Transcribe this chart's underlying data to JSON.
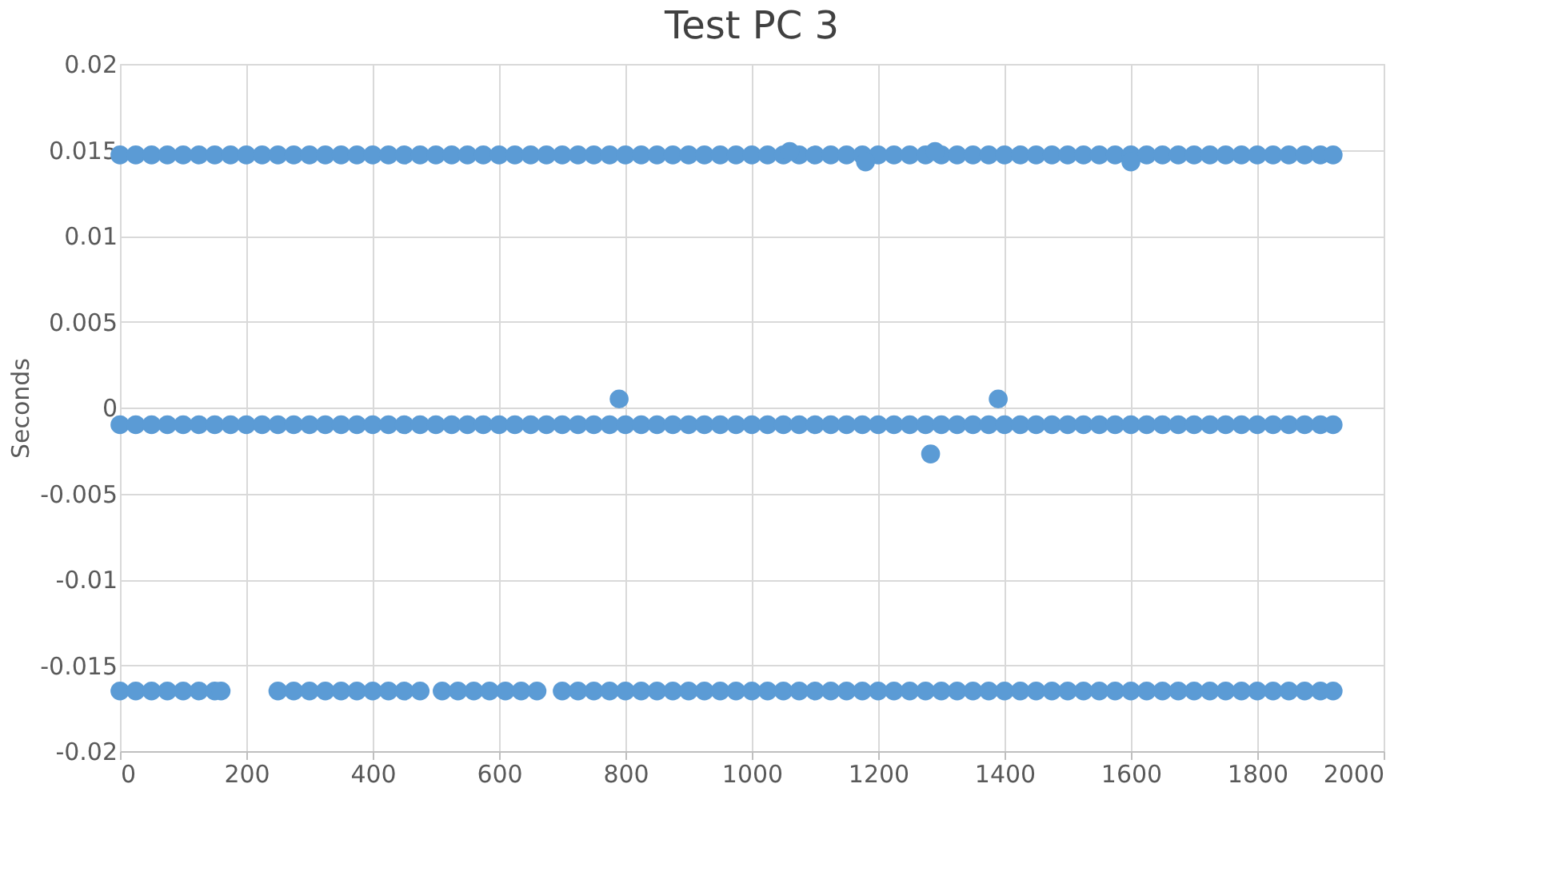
{
  "chart_data": {
    "type": "scatter",
    "title": "Test PC 3",
    "ylabel": "Seconds",
    "xlim": [
      0,
      2000
    ],
    "xticks": [
      0,
      200,
      400,
      600,
      800,
      1000,
      1200,
      1400,
      1600,
      1800,
      2000
    ],
    "ylim": [
      -0.02,
      0.02
    ],
    "yticks": [
      -0.02,
      -0.015,
      -0.01,
      -0.005,
      0,
      0.005,
      0.01,
      0.015,
      0.02
    ],
    "grid": true,
    "marker": "circle",
    "legend": false,
    "series": [
      {
        "color": "#5b9bd5",
        "x": [
          0,
          25,
          50,
          75,
          100,
          125,
          150,
          175,
          200,
          225,
          250,
          275,
          300,
          325,
          350,
          375,
          400,
          425,
          450,
          475,
          500,
          525,
          550,
          575,
          600,
          625,
          650,
          675,
          700,
          725,
          750,
          775,
          800,
          825,
          850,
          875,
          900,
          925,
          950,
          975,
          1000,
          1025,
          1050,
          1075,
          1100,
          1125,
          1150,
          1175,
          1200,
          1225,
          1250,
          1275,
          1300,
          1325,
          1350,
          1375,
          1400,
          1425,
          1450,
          1475,
          1500,
          1525,
          1550,
          1575,
          1600,
          1625,
          1650,
          1675,
          1700,
          1725,
          1750,
          1775,
          1800,
          1825,
          1850,
          1875,
          1900,
          1920
        ],
        "values": [
          0.0147,
          0.0147,
          0.0147,
          0.0147,
          0.0147,
          0.0147,
          0.0147,
          0.0147,
          0.0147,
          0.0147,
          0.0147,
          0.0147,
          0.0147,
          0.0147,
          0.0147,
          0.0147,
          0.0147,
          0.0147,
          0.0147,
          0.0147,
          0.0147,
          0.0147,
          0.0147,
          0.0147,
          0.0147,
          0.0147,
          0.0147,
          0.0147,
          0.0147,
          0.0147,
          0.0147,
          0.0147,
          0.0147,
          0.0147,
          0.0147,
          0.0147,
          0.0147,
          0.0147,
          0.0147,
          0.0147,
          0.0147,
          0.0147,
          0.0147,
          0.0147,
          0.0147,
          0.0147,
          0.0147,
          0.0147,
          0.0147,
          0.0147,
          0.0147,
          0.0147,
          0.0147,
          0.0147,
          0.0147,
          0.0147,
          0.0147,
          0.0147,
          0.0147,
          0.0147,
          0.0147,
          0.0147,
          0.0147,
          0.0147,
          0.0147,
          0.0147,
          0.0147,
          0.0147,
          0.0147,
          0.0147,
          0.0147,
          0.0147,
          0.0147,
          0.0147,
          0.0147,
          0.0147,
          0.0147,
          0.0147
        ]
      },
      {
        "color": "#5b9bd5",
        "x": [
          0,
          25,
          50,
          75,
          100,
          125,
          150,
          175,
          200,
          225,
          250,
          275,
          300,
          325,
          350,
          375,
          400,
          425,
          450,
          475,
          500,
          525,
          550,
          575,
          600,
          625,
          650,
          675,
          700,
          725,
          750,
          775,
          800,
          825,
          850,
          875,
          900,
          925,
          950,
          975,
          1000,
          1025,
          1050,
          1075,
          1100,
          1125,
          1150,
          1175,
          1200,
          1225,
          1250,
          1275,
          1300,
          1325,
          1350,
          1375,
          1400,
          1425,
          1450,
          1475,
          1500,
          1525,
          1550,
          1575,
          1600,
          1625,
          1650,
          1675,
          1700,
          1725,
          1750,
          1775,
          1800,
          1825,
          1850,
          1875,
          1900,
          1920
        ],
        "values": [
          -0.001,
          -0.001,
          -0.001,
          -0.001,
          -0.001,
          -0.001,
          -0.001,
          -0.001,
          -0.001,
          -0.001,
          -0.001,
          -0.001,
          -0.001,
          -0.001,
          -0.001,
          -0.001,
          -0.001,
          -0.001,
          -0.001,
          -0.001,
          -0.001,
          -0.001,
          -0.001,
          -0.001,
          -0.001,
          -0.001,
          -0.001,
          -0.001,
          -0.001,
          -0.001,
          -0.001,
          -0.001,
          -0.001,
          -0.001,
          -0.001,
          -0.001,
          -0.001,
          -0.001,
          -0.001,
          -0.001,
          -0.001,
          -0.001,
          -0.001,
          -0.001,
          -0.001,
          -0.001,
          -0.001,
          -0.001,
          -0.001,
          -0.001,
          -0.001,
          -0.001,
          -0.001,
          -0.001,
          -0.001,
          -0.001,
          -0.001,
          -0.001,
          -0.001,
          -0.001,
          -0.001,
          -0.001,
          -0.001,
          -0.001,
          -0.001,
          -0.001,
          -0.001,
          -0.001,
          -0.001,
          -0.001,
          -0.001,
          -0.001,
          -0.001,
          -0.001,
          -0.001,
          -0.001,
          -0.001,
          -0.001
        ]
      },
      {
        "color": "#5b9bd5",
        "x": [
          0,
          25,
          50,
          75,
          100,
          125,
          150,
          160,
          250,
          275,
          300,
          325,
          350,
          375,
          400,
          425,
          450,
          475,
          510,
          535,
          560,
          585,
          610,
          635,
          660,
          700,
          725,
          750,
          775,
          800,
          825,
          850,
          875,
          900,
          925,
          950,
          975,
          1000,
          1025,
          1050,
          1075,
          1100,
          1125,
          1150,
          1175,
          1200,
          1225,
          1250,
          1275,
          1300,
          1325,
          1350,
          1375,
          1400,
          1425,
          1450,
          1475,
          1500,
          1525,
          1550,
          1575,
          1600,
          1625,
          1650,
          1675,
          1700,
          1725,
          1750,
          1775,
          1800,
          1825,
          1850,
          1875,
          1900,
          1920
        ],
        "values": [
          -0.0165,
          -0.0165,
          -0.0165,
          -0.0165,
          -0.0165,
          -0.0165,
          -0.0165,
          -0.0165,
          -0.0165,
          -0.0165,
          -0.0165,
          -0.0165,
          -0.0165,
          -0.0165,
          -0.0165,
          -0.0165,
          -0.0165,
          -0.0165,
          -0.0165,
          -0.0165,
          -0.0165,
          -0.0165,
          -0.0165,
          -0.0165,
          -0.0165,
          -0.0165,
          -0.0165,
          -0.0165,
          -0.0165,
          -0.0165,
          -0.0165,
          -0.0165,
          -0.0165,
          -0.0165,
          -0.0165,
          -0.0165,
          -0.0165,
          -0.0165,
          -0.0165,
          -0.0165,
          -0.0165,
          -0.0165,
          -0.0165,
          -0.0165,
          -0.0165,
          -0.0165,
          -0.0165,
          -0.0165,
          -0.0165,
          -0.0165,
          -0.0165,
          -0.0165,
          -0.0165,
          -0.0165,
          -0.0165,
          -0.0165,
          -0.0165,
          -0.0165,
          -0.0165,
          -0.0165,
          -0.0165,
          -0.0165,
          -0.0165,
          -0.0165,
          -0.0165,
          -0.0165,
          -0.0165,
          -0.0165,
          -0.0165,
          -0.0165,
          -0.0165,
          -0.0165,
          -0.0165,
          -0.0165,
          -0.0165
        ]
      },
      {
        "color": "#5b9bd5",
        "x": [
          790,
          1390,
          1283,
          1060,
          1290,
          1180,
          1600
        ],
        "values": [
          0.0005,
          0.0005,
          -0.0027,
          0.0149,
          0.0149,
          0.0143,
          0.0143
        ]
      }
    ]
  }
}
